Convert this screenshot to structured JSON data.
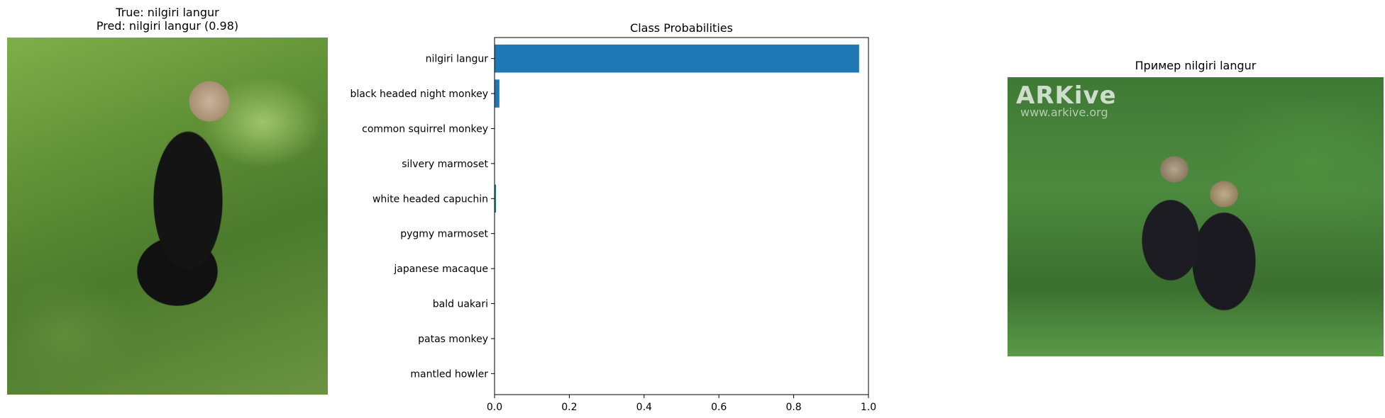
{
  "left_panel": {
    "title_line1": "True: nilgiri langur",
    "title_line2": "Pred: nilgiri langur (0.98)"
  },
  "right_panel": {
    "title": "Пример nilgiri langur",
    "watermark": "ARKive",
    "watermark_url": "www.arkive.org"
  },
  "chart_data": {
    "type": "bar",
    "orientation": "horizontal",
    "title": "Class Probabilities",
    "categories": [
      "nilgiri langur",
      "black headed night monkey",
      "common squirrel monkey",
      "silvery marmoset",
      "white headed capuchin",
      "pygmy marmoset",
      "japanese macaque",
      "bald uakari",
      "patas monkey",
      "mantled howler"
    ],
    "values": [
      0.975,
      0.013,
      0.001,
      0.001,
      0.004,
      0.001,
      0.001,
      0.001,
      0.001,
      0.001
    ],
    "xlim": [
      0,
      1.0
    ],
    "xticks": [
      "0.0",
      "0.2",
      "0.4",
      "0.6",
      "0.8",
      "1.0"
    ],
    "bar_color": "#1f77b4",
    "grid": false
  }
}
